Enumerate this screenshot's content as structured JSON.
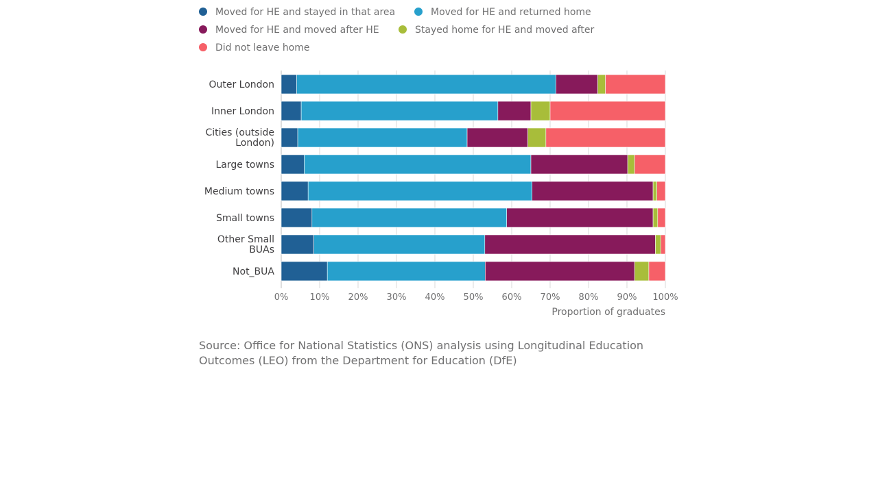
{
  "chart_data": {
    "type": "bar",
    "orientation": "horizontal",
    "stacked": true,
    "categories": [
      "Outer London",
      "Inner London",
      "Cities (outside London)",
      "Large towns",
      "Medium towns",
      "Small towns",
      "Other Small BUAs",
      "Not_BUA"
    ],
    "series": [
      {
        "name": "Moved for HE and stayed in that area",
        "color": "#206095",
        "values": [
          4,
          5.2,
          4.3,
          6,
          7,
          8,
          8.5,
          12
        ]
      },
      {
        "name": "Moved for HE and returned home",
        "color": "#27a0cc",
        "values": [
          67.5,
          51.2,
          44.1,
          59,
          58.3,
          50.7,
          44.5,
          41.1
        ]
      },
      {
        "name": "Moved for HE and moved after HE",
        "color": "#871a5b",
        "values": [
          10.9,
          8.6,
          15.8,
          25.2,
          31.5,
          38.1,
          44.4,
          38.9
        ]
      },
      {
        "name": "Stayed home for HE and moved after",
        "color": "#a8bd3a",
        "values": [
          2,
          5,
          4.7,
          1.8,
          1,
          1.2,
          1.4,
          3.7
        ]
      },
      {
        "name": "Did not leave home",
        "color": "#f66068",
        "values": [
          15.6,
          30,
          31.1,
          8,
          2.2,
          2,
          1.2,
          4.3
        ]
      }
    ],
    "xlim": [
      0,
      100
    ],
    "x_ticks": [
      "0%",
      "10%",
      "20%",
      "30%",
      "40%",
      "50%",
      "60%",
      "70%",
      "80%",
      "90%",
      "100%"
    ],
    "xlabel": "Proportion of graduates",
    "ylabel": "",
    "title": "",
    "grid": true,
    "legend_position": "top"
  },
  "source": "Source: Office for National Statistics (ONS) analysis using Longitudinal Education Outcomes (LEO) from the Department for Education (DfE)"
}
